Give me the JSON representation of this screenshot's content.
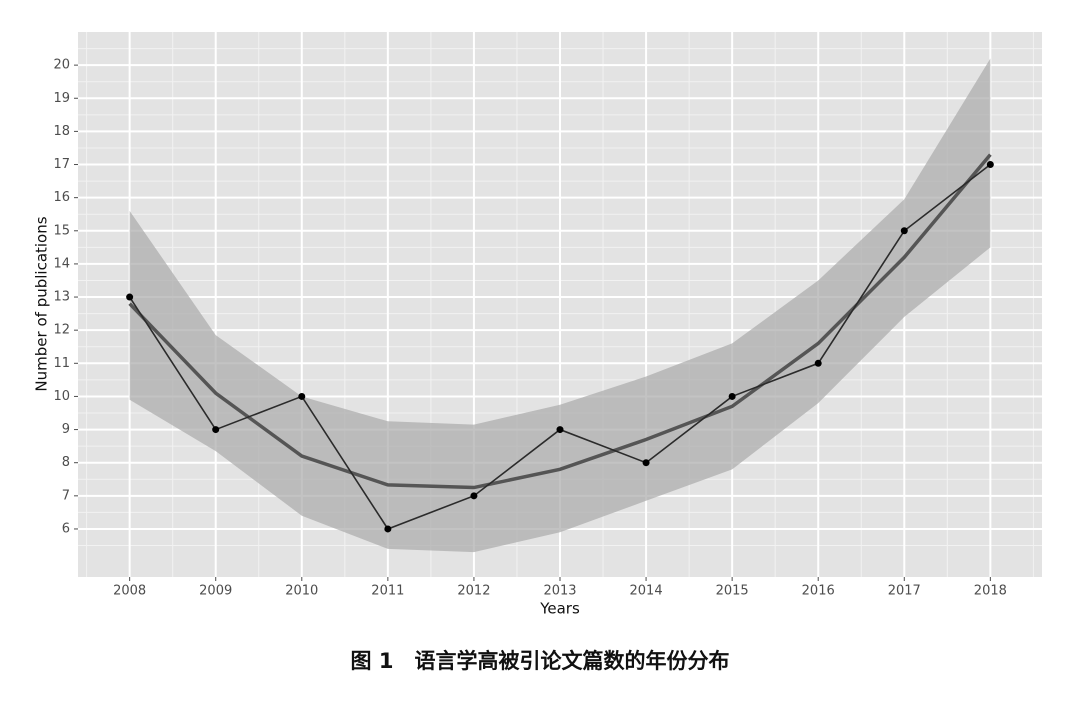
{
  "chart_data": {
    "type": "line",
    "xlabel": "Years",
    "ylabel": "Number of publications",
    "caption": "图 1　语言学高被引论文篇数的年份分布",
    "x": [
      2008,
      2009,
      2010,
      2011,
      2012,
      2013,
      2014,
      2015,
      2016,
      2017,
      2018
    ],
    "values": [
      13,
      9,
      10,
      6,
      7,
      9,
      8,
      10,
      11,
      15,
      17
    ],
    "fit": [
      12.8,
      10.1,
      8.2,
      7.33,
      7.25,
      7.8,
      8.7,
      9.7,
      11.6,
      14.2,
      17.3
    ],
    "band_upper": [
      15.6,
      11.85,
      10.0,
      9.25,
      9.15,
      9.75,
      10.6,
      11.6,
      13.5,
      15.95,
      20.2
    ],
    "band_lower": [
      9.9,
      8.35,
      6.4,
      5.4,
      5.3,
      5.9,
      6.85,
      7.8,
      9.8,
      12.4,
      14.5
    ],
    "color": "#2b2b2b",
    "fit_color": "#555555",
    "band_color": "#a9a9a9",
    "panel_color": "#e3e3e3",
    "xlim": [
      2007.4,
      2018.6
    ],
    "ylim": [
      4.55,
      21.0
    ],
    "xticks": [
      2008,
      2009,
      2010,
      2011,
      2012,
      2013,
      2014,
      2015,
      2016,
      2017,
      2018
    ],
    "yticks": [
      6,
      7,
      8,
      9,
      10,
      11,
      12,
      13,
      14,
      15,
      16,
      17,
      18,
      19,
      20
    ],
    "grid": true
  }
}
